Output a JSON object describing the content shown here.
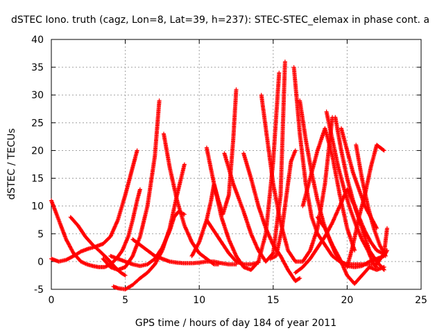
{
  "chart_data": {
    "type": "scatter",
    "title": "dSTEC Iono. truth (cagz, Lon=8, Lat=39, h=237): STEC-STEC_elemax in phase cont. a",
    "xlabel": "GPS time / hours of day 184 of year 2011",
    "ylabel": "dSTEC  / TECUs",
    "xlim": [
      0,
      25
    ],
    "ylim": [
      -5,
      40
    ],
    "xticks": [
      0,
      5,
      10,
      15,
      20,
      25
    ],
    "yticks": [
      -5,
      0,
      5,
      10,
      15,
      20,
      25,
      30,
      35,
      40
    ],
    "grid": true,
    "marker": "+",
    "color": "#ff0000",
    "series": [
      {
        "x": [
          0.0,
          0.5,
          1.0,
          1.5,
          2.0,
          2.4,
          2.8,
          3.2,
          3.6,
          4.0,
          4.4,
          4.8,
          5.2,
          5.5,
          5.8,
          6.0
        ],
        "y": [
          11.0,
          7.5,
          4.0,
          1.5,
          0.0,
          -0.5,
          -0.8,
          -1.0,
          -1.0,
          -0.5,
          0.5,
          2.0,
          4.5,
          7.5,
          11.0,
          13.0
        ]
      },
      {
        "x": [
          0.0,
          0.5,
          1.0,
          1.5,
          2.0,
          2.5,
          3.0,
          3.5,
          4.0,
          4.5,
          5.0,
          5.3,
          5.6,
          5.8
        ],
        "y": [
          0.5,
          0.0,
          0.3,
          1.0,
          1.8,
          2.3,
          2.7,
          3.2,
          4.5,
          7.5,
          12.0,
          15.0,
          18.0,
          20.0
        ]
      },
      {
        "x": [
          1.3,
          1.8,
          2.3,
          2.8,
          3.3,
          3.8,
          4.3,
          4.7,
          5.0
        ],
        "y": [
          8.0,
          6.5,
          4.5,
          3.0,
          1.8,
          0.5,
          -1.0,
          -2.0,
          -2.5
        ]
      },
      {
        "x": [
          3.5,
          4.0,
          4.5,
          5.0,
          5.5,
          6.0,
          6.5,
          7.0,
          7.3
        ],
        "y": [
          0.5,
          -1.0,
          -1.5,
          -1.0,
          1.0,
          4.5,
          10.0,
          19.0,
          29.0
        ]
      },
      {
        "x": [
          4.2,
          4.5,
          5.0,
          5.5,
          6.0,
          6.5,
          7.0,
          7.5,
          8.0,
          8.5,
          9.0
        ],
        "y": [
          -4.5,
          -4.8,
          -5.0,
          -4.2,
          -3.0,
          -2.0,
          -0.5,
          2.0,
          6.0,
          12.0,
          17.5
        ]
      },
      {
        "x": [
          4.0,
          4.5,
          5.0,
          5.5,
          6.0,
          6.5,
          7.0,
          7.5,
          8.0,
          8.3,
          8.6,
          9.0
        ],
        "y": [
          1.0,
          0.5,
          0.0,
          -0.5,
          -0.8,
          -0.5,
          0.5,
          2.5,
          5.5,
          8.0,
          9.0,
          8.5
        ]
      },
      {
        "x": [
          5.5,
          6.0,
          6.5,
          7.0,
          7.5,
          8.0,
          8.5,
          9.0,
          9.5,
          10.0,
          10.5,
          11.0,
          11.5,
          12.0,
          12.5
        ],
        "y": [
          4.0,
          3.0,
          2.0,
          1.0,
          0.5,
          0.0,
          -0.2,
          -0.3,
          -0.3,
          -0.2,
          0.0,
          0.0,
          -0.3,
          -0.5,
          -0.5
        ]
      },
      {
        "x": [
          7.6,
          8.0,
          8.5,
          9.0,
          9.5,
          10.0,
          10.5,
          11.0,
          11.3
        ],
        "y": [
          23.0,
          17.0,
          11.0,
          6.5,
          3.5,
          1.5,
          0.5,
          -0.5,
          -0.5
        ]
      },
      {
        "x": [
          9.5,
          10.0,
          10.5,
          10.8,
          11.0,
          11.3,
          11.6,
          12.0,
          12.3,
          12.5
        ],
        "y": [
          1.0,
          3.5,
          7.5,
          11.0,
          14.0,
          11.0,
          8.5,
          12.0,
          22.0,
          31.0
        ]
      },
      {
        "x": [
          10.5,
          11.0,
          11.5,
          12.0,
          12.5,
          13.0,
          13.5,
          14.0,
          14.5,
          15.0,
          15.4
        ],
        "y": [
          20.5,
          14.0,
          8.0,
          4.0,
          1.0,
          -1.0,
          -1.5,
          0.0,
          5.0,
          18.0,
          34.0
        ]
      },
      {
        "x": [
          10.5,
          11.0,
          11.5,
          12.0,
          12.5,
          13.0,
          13.5,
          14.0
        ],
        "y": [
          7.5,
          5.5,
          3.5,
          1.5,
          0.0,
          -0.5,
          -0.5,
          -0.2
        ]
      },
      {
        "x": [
          11.7,
          12.3,
          13.0,
          13.5,
          14.0,
          14.5,
          15.0,
          15.5,
          15.8
        ],
        "y": [
          19.5,
          14.0,
          9.0,
          5.0,
          2.0,
          0.0,
          1.5,
          12.0,
          36.0
        ]
      },
      {
        "x": [
          13.0,
          13.5,
          14.0,
          14.5,
          15.0,
          15.5,
          16.0,
          16.5,
          16.8
        ],
        "y": [
          19.5,
          15.0,
          10.0,
          6.0,
          3.0,
          1.0,
          -1.5,
          -3.5,
          -3.0
        ]
      },
      {
        "x": [
          14.2,
          14.6,
          15.0,
          15.5,
          16.0,
          16.5,
          17.0,
          17.5,
          18.0,
          18.5,
          19.0
        ],
        "y": [
          30.0,
          22.0,
          14.0,
          7.0,
          2.0,
          0.0,
          0.0,
          2.0,
          6.0,
          14.0,
          26.0
        ]
      },
      {
        "x": [
          14.8,
          15.2,
          15.6,
          16.0,
          16.2,
          16.5
        ],
        "y": [
          0.5,
          1.0,
          6.0,
          14.0,
          18.0,
          20.0
        ]
      },
      {
        "x": [
          16.4,
          16.8,
          17.2,
          17.6,
          18.0,
          18.5,
          19.0,
          19.5,
          20.0,
          20.5,
          21.0,
          21.5,
          22.0,
          22.5,
          22.7
        ],
        "y": [
          35.0,
          23.0,
          14.0,
          8.0,
          5.0,
          3.0,
          1.0,
          0.0,
          -0.5,
          -0.5,
          -0.5,
          -0.5,
          -0.5,
          1.5,
          6.0
        ]
      },
      {
        "x": [
          16.8,
          17.2,
          17.6,
          18.0,
          18.4,
          18.8,
          19.2,
          19.6,
          20.0,
          20.5,
          21.0,
          21.5,
          22.0,
          22.5,
          22.7
        ],
        "y": [
          29.0,
          22.0,
          16.0,
          11.0,
          7.0,
          4.0,
          1.5,
          0.0,
          -0.8,
          -1.0,
          -0.8,
          0.0,
          0.5,
          1.0,
          2.0
        ]
      },
      {
        "x": [
          17.0,
          17.5,
          18.0,
          18.5,
          19.0,
          19.5,
          20.0,
          20.5
        ],
        "y": [
          10.0,
          15.0,
          20.0,
          24.0,
          19.0,
          12.0,
          6.0,
          2.0
        ]
      },
      {
        "x": [
          16.5,
          17.0,
          17.5,
          18.0,
          18.5,
          19.0,
          19.5,
          20.0,
          20.5,
          21.0,
          21.5,
          22.0,
          22.5
        ],
        "y": [
          -2.0,
          -1.0,
          0.5,
          2.5,
          4.5,
          7.0,
          10.0,
          13.0,
          10.0,
          6.0,
          2.0,
          0.0,
          -1.5
        ]
      },
      {
        "x": [
          18.0,
          18.5,
          19.0,
          19.5,
          20.0,
          20.5,
          21.0,
          21.5,
          22.0,
          22.5
        ],
        "y": [
          8.0,
          6.0,
          3.0,
          0.5,
          -2.5,
          -4.0,
          -2.5,
          -1.0,
          -1.5,
          -1.0
        ]
      },
      {
        "x": [
          18.6,
          19.0,
          19.4,
          19.8,
          20.2,
          20.6,
          21.0,
          21.4,
          21.8,
          22.0
        ],
        "y": [
          27.0,
          22.0,
          17.0,
          13.0,
          9.5,
          6.5,
          4.0,
          2.0,
          -0.5,
          -1.0
        ]
      },
      {
        "x": [
          19.2,
          19.6,
          20.0,
          20.4,
          20.8,
          21.2,
          21.6,
          22.0,
          22.4
        ],
        "y": [
          26.0,
          20.0,
          15.0,
          11.0,
          8.0,
          5.5,
          3.5,
          2.0,
          1.5
        ]
      },
      {
        "x": [
          19.6,
          20.0,
          20.4,
          20.8,
          21.2,
          21.6,
          22.0
        ],
        "y": [
          24.0,
          20.0,
          16.0,
          13.0,
          10.0,
          8.0,
          6.0
        ]
      },
      {
        "x": [
          20.0,
          20.4,
          20.8,
          21.2,
          21.6,
          22.0,
          22.5
        ],
        "y": [
          -1.0,
          3.0,
          8.0,
          12.0,
          17.0,
          21.0,
          20.0
        ]
      },
      {
        "x": [
          20.6,
          21.0,
          21.4,
          21.8,
          22.2,
          22.6
        ],
        "y": [
          21.0,
          15.0,
          10.0,
          6.0,
          3.0,
          1.0
        ]
      }
    ]
  }
}
